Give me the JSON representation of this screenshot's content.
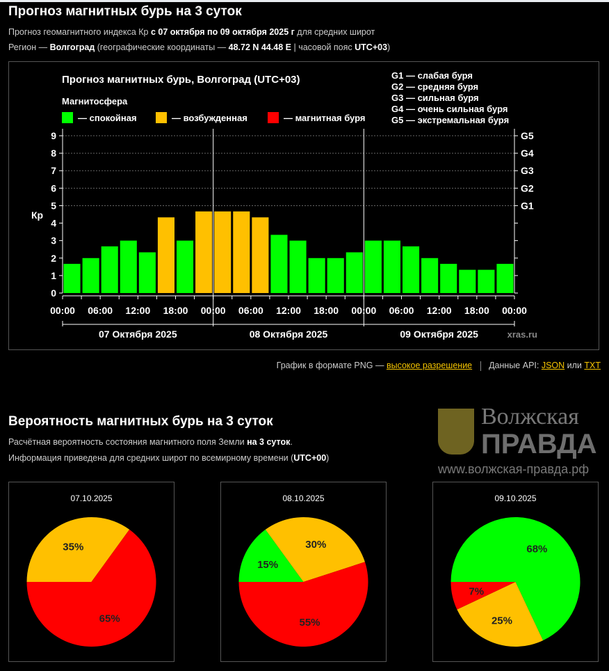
{
  "header": {
    "title": "Прогноз магнитных бурь на 3 суток",
    "line1_pre": "Прогноз геомагнитного индекса Кр ",
    "line1_bold": "с 07 октября по 09 октября 2025 г",
    "line1_post": " для средних широт",
    "line2_pre": "Регион — ",
    "line2_region": "Волгоград",
    "line2_mid": " (географические координаты — ",
    "line2_coords": "48.72 N 44.48 E",
    "line2_sep": " | часовой пояс ",
    "line2_tz": "UTC+03",
    "line2_post": ")"
  },
  "chart_data": {
    "type": "bar",
    "title": "Прогноз магнитных бурь, Волгоград (UTC+03)",
    "legend_title": "Магнитосфера",
    "legend": [
      {
        "label": "— спокойная",
        "color": "#00ff00"
      },
      {
        "label": "— возбужденная",
        "color": "#ffc000"
      },
      {
        "label": "— магнитная буря",
        "color": "#ff0000"
      }
    ],
    "g_legend": [
      "G1 — слабая буря",
      "G2 — средняя буря",
      "G3 — сильная буря",
      "G4 — очень сильная буря",
      "G5 — экстремальная буря"
    ],
    "ylabel": "Кр",
    "ylim": [
      0,
      9
    ],
    "yticks": [
      "0",
      "1",
      "2",
      "3",
      "4",
      "5",
      "6",
      "7",
      "8",
      "9"
    ],
    "right_ticks": [
      {
        "v": 5,
        "label": "G1"
      },
      {
        "v": 6,
        "label": "G2"
      },
      {
        "v": 7,
        "label": "G3"
      },
      {
        "v": 8,
        "label": "G4"
      },
      {
        "v": 9,
        "label": "G5"
      }
    ],
    "xticks": [
      "00:00",
      "06:00",
      "12:00",
      "18:00",
      "00:00",
      "06:00",
      "12:00",
      "18:00",
      "00:00",
      "06:00",
      "12:00",
      "18:00",
      "00:00"
    ],
    "days": [
      "07 Октября 2025",
      "08 Октября 2025",
      "09 Октября 2025"
    ],
    "values": [
      1.67,
      2,
      2.67,
      3,
      2.33,
      4.33,
      3,
      4.67,
      4.67,
      4.67,
      4.33,
      3.33,
      3,
      2,
      2,
      2.33,
      3,
      3,
      2.67,
      2,
      1.67,
      1.33,
      1.33,
      1.67
    ],
    "credit": "xras.ru"
  },
  "links": {
    "png_pre": "График в формате PNG — ",
    "png_link": "высокое разрешение",
    "api_pre": "Данные API: ",
    "json": "JSON",
    "or": " или ",
    "txt": "TXT"
  },
  "prob": {
    "title": "Вероятность магнитных бурь на 3 суток",
    "line1_pre": "Расчётная вероятность состояния магнитного поля Земли ",
    "line1_bold": "на 3 суток",
    "line1_post": ".",
    "line2_pre": "Информация приведена для средних широт по всемирному времени (",
    "line2_bold": "UTC+00",
    "line2_post": ")",
    "pies": [
      {
        "date": "07.10.2025",
        "slices": [
          {
            "v": 0,
            "label": "",
            "color": "#00ff00"
          },
          {
            "v": 35,
            "label": "35%",
            "color": "#ffc000"
          },
          {
            "v": 65,
            "label": "65%",
            "color": "#ff0000"
          }
        ]
      },
      {
        "date": "08.10.2025",
        "slices": [
          {
            "v": 15,
            "label": "15%",
            "color": "#00ff00"
          },
          {
            "v": 30,
            "label": "30%",
            "color": "#ffc000"
          },
          {
            "v": 55,
            "label": "55%",
            "color": "#ff0000"
          }
        ]
      },
      {
        "date": "09.10.2025",
        "slices": [
          {
            "v": 68,
            "label": "68%",
            "color": "#00ff00"
          },
          {
            "v": 25,
            "label": "25%",
            "color": "#ffc000"
          },
          {
            "v": 7,
            "label": "7%",
            "color": "#ff0000"
          }
        ]
      }
    ]
  },
  "watermark": {
    "line1": "Волжская",
    "line2": "ПРАВДА",
    "url": "www.волжская-правда.рф"
  }
}
